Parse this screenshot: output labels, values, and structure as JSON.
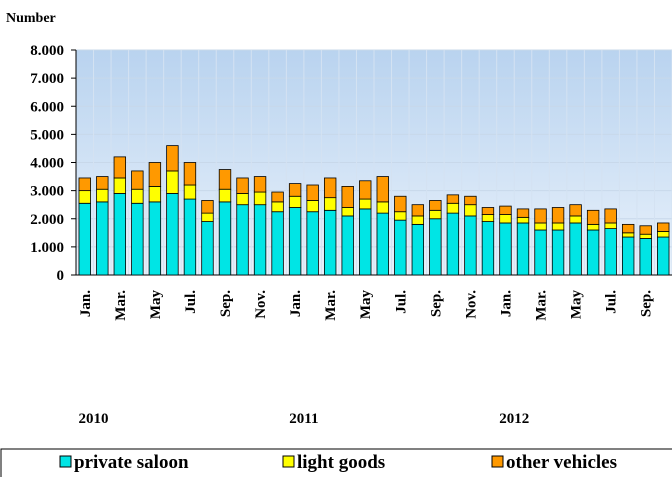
{
  "chart_data": {
    "type": "stacked_bar",
    "y_label": "Number",
    "categories": [
      "Jan.",
      null,
      "Mar.",
      null,
      "May",
      null,
      "Jul.",
      null,
      "Sep.",
      null,
      "Nov.",
      null,
      "Jan.",
      null,
      "Mar.",
      null,
      "May",
      null,
      "Jul.",
      null,
      "Sep.",
      null,
      "Nov.",
      null,
      "Jan.",
      null,
      "Mar.",
      null,
      "May",
      null,
      "Jul.",
      null,
      "Sep.",
      null
    ],
    "year_labels": [
      "2010",
      "2011",
      "2012"
    ],
    "series": [
      {
        "name": "private saloon",
        "color": "#00e5e5",
        "values": [
          2550,
          2600,
          2900,
          2550,
          2600,
          2900,
          2700,
          1900,
          2600,
          2500,
          2500,
          2250,
          2400,
          2250,
          2300,
          2100,
          2350,
          2200,
          1950,
          1800,
          2000,
          2200,
          2100,
          1900,
          1850,
          1850,
          1600,
          1600,
          1850,
          1600,
          1650,
          1350,
          1300,
          1350
        ]
      },
      {
        "name": "light goods",
        "color": "#ffff00",
        "values": [
          450,
          450,
          550,
          500,
          550,
          800,
          500,
          300,
          450,
          400,
          450,
          350,
          400,
          400,
          450,
          300,
          350,
          400,
          300,
          300,
          300,
          350,
          400,
          250,
          300,
          200,
          250,
          250,
          250,
          200,
          200,
          150,
          150,
          200
        ]
      },
      {
        "name": "other vehicles",
        "color": "#ff9900",
        "values": [
          450,
          450,
          750,
          650,
          850,
          900,
          800,
          450,
          700,
          550,
          550,
          350,
          450,
          550,
          700,
          750,
          650,
          900,
          550,
          400,
          350,
          300,
          300,
          250,
          300,
          300,
          500,
          550,
          400,
          500,
          500,
          300,
          300,
          300
        ]
      }
    ],
    "ylim": [
      0,
      8000
    ],
    "yticks": [
      0,
      {
        "value": 1000,
        "label": "1.000"
      },
      {
        "value": 2000,
        "label": "2.000"
      },
      {
        "value": 3000,
        "label": "3.000"
      },
      {
        "value": 4000,
        "label": "4.000"
      },
      {
        "value": 5000,
        "label": "5.000"
      },
      {
        "value": 6000,
        "label": "6.000"
      },
      {
        "value": 7000,
        "label": "7.000"
      },
      {
        "value": 8000,
        "label": "8.000"
      }
    ],
    "grid": true,
    "legend": "bottom"
  }
}
